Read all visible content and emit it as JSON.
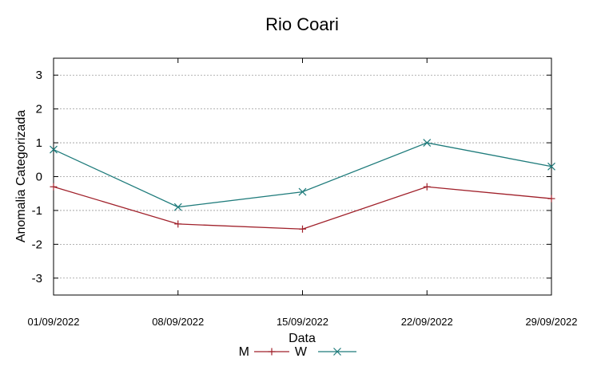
{
  "chart_data": {
    "type": "line",
    "title": "Rio Coari",
    "xlabel": "Data",
    "ylabel": "Anomalia Categorizada",
    "categories": [
      "01/09/2022",
      "08/09/2022",
      "15/09/2022",
      "22/09/2022",
      "29/09/2022"
    ],
    "ylim": [
      -3.5,
      3.5
    ],
    "yticks": [
      3,
      2,
      1,
      0,
      -1,
      -2,
      -3
    ],
    "grid": true,
    "legend_position": "bottom-center",
    "series": [
      {
        "name": "M",
        "values": [
          -0.3,
          -1.4,
          -1.55,
          -0.3,
          -0.65
        ],
        "color": "#a0202a",
        "marker": "plus"
      },
      {
        "name": "W",
        "values": [
          0.8,
          -0.9,
          -0.45,
          1.0,
          0.3
        ],
        "color": "#1e7b7b",
        "marker": "cross"
      }
    ]
  }
}
